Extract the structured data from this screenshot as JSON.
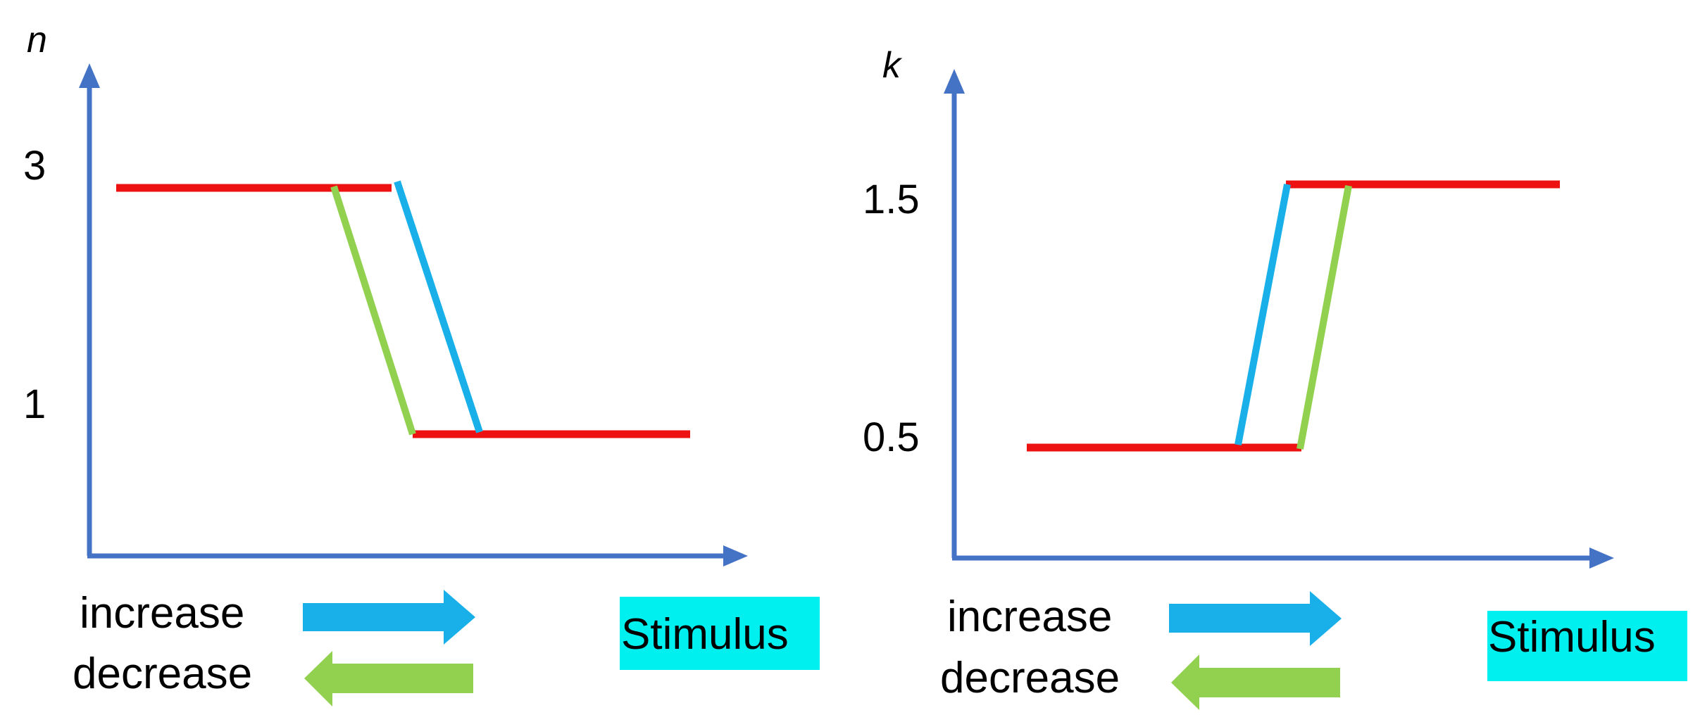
{
  "colors": {
    "axis": "#4472c4",
    "red": "#ee1111",
    "blue": "#19b0ea",
    "green": "#92d050",
    "stimulus_bg": "#00f0f0"
  },
  "left": {
    "y_axis_name": "n",
    "ticks": [
      {
        "label": "3",
        "value": 3
      },
      {
        "label": "1",
        "value": 1
      }
    ],
    "legend_increase": "increase",
    "legend_decrease": "decrease",
    "x_axis_name": "Stimulus"
  },
  "right": {
    "y_axis_name": "k",
    "ticks": [
      {
        "label": "1.5",
        "value": 1.5
      },
      {
        "label": "0.5",
        "value": 0.5
      }
    ],
    "legend_increase": "increase",
    "legend_decrease": "decrease",
    "x_axis_name": "Stimulus"
  }
}
